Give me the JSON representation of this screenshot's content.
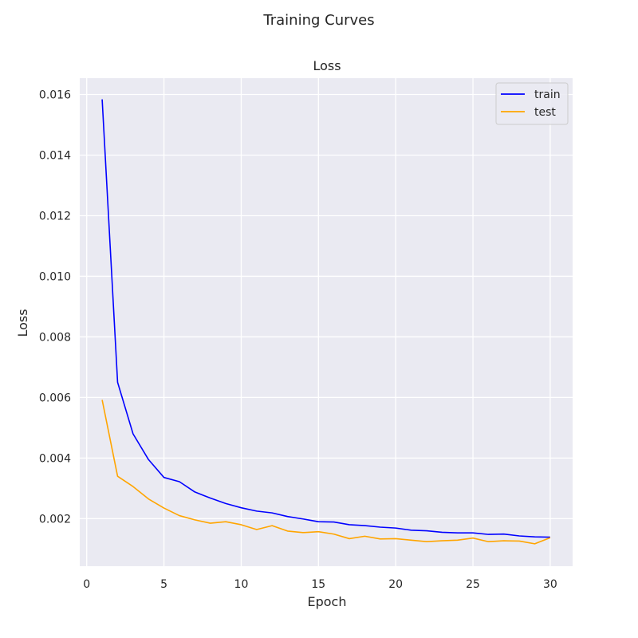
{
  "figure": {
    "suptitle": "Training Curves"
  },
  "chart_data": {
    "type": "line",
    "title": "Loss",
    "xlabel": "Epoch",
    "ylabel": "Loss",
    "xlim": [
      -0.45,
      31.45
    ],
    "ylim": [
      0.00043,
      0.01654
    ],
    "xticks": [
      0,
      5,
      10,
      15,
      20,
      25,
      30
    ],
    "xtick_labels": [
      "0",
      "5",
      "10",
      "15",
      "20",
      "25",
      "30"
    ],
    "yticks": [
      0.002,
      0.004,
      0.006,
      0.008,
      0.01,
      0.012,
      0.014,
      0.016
    ],
    "ytick_labels": [
      "0.002",
      "0.004",
      "0.006",
      "0.008",
      "0.010",
      "0.012",
      "0.014",
      "0.016"
    ],
    "grid": true,
    "legend_position": "top-right",
    "x": [
      1,
      2,
      3,
      4,
      5,
      6,
      7,
      8,
      9,
      10,
      11,
      12,
      13,
      14,
      15,
      16,
      17,
      18,
      19,
      20,
      21,
      22,
      23,
      24,
      25,
      26,
      27,
      28,
      29,
      30
    ],
    "series": [
      {
        "name": "train",
        "color": "#0000ff",
        "values": [
          0.01584,
          0.0065,
          0.0048,
          0.00395,
          0.00336,
          0.00322,
          0.00288,
          0.00268,
          0.0025,
          0.00236,
          0.00225,
          0.00219,
          0.00207,
          0.00199,
          0.0019,
          0.00189,
          0.0018,
          0.00177,
          0.00172,
          0.00169,
          0.00162,
          0.0016,
          0.00155,
          0.00153,
          0.00153,
          0.00148,
          0.00149,
          0.00143,
          0.0014,
          0.00139
        ]
      },
      {
        "name": "test",
        "color": "#ffa500",
        "values": [
          0.00592,
          0.0034,
          0.00306,
          0.00265,
          0.00235,
          0.0021,
          0.00196,
          0.00185,
          0.0019,
          0.0018,
          0.00164,
          0.00177,
          0.00159,
          0.00154,
          0.00157,
          0.00149,
          0.00134,
          0.00142,
          0.00133,
          0.00134,
          0.00129,
          0.00124,
          0.00127,
          0.00129,
          0.00136,
          0.00124,
          0.00127,
          0.00126,
          0.00117,
          0.00137
        ]
      }
    ]
  }
}
